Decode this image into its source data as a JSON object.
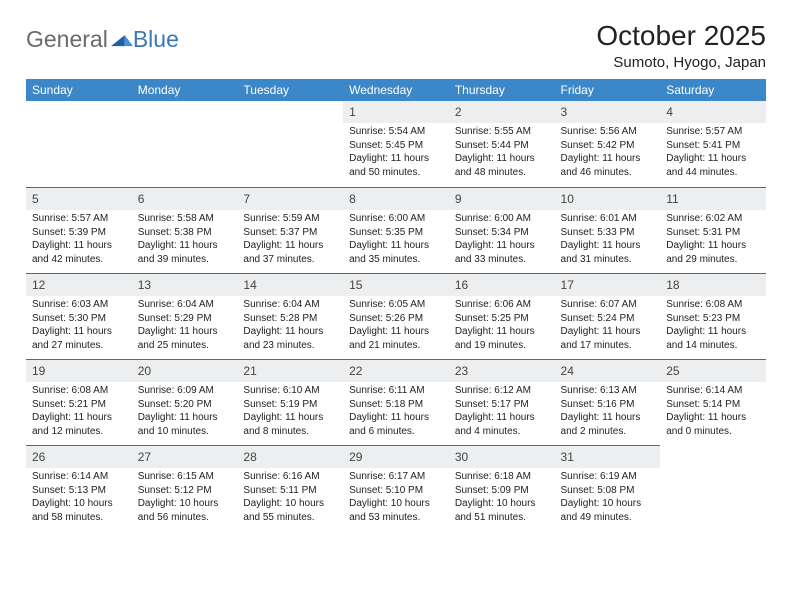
{
  "brand": {
    "part1": "General",
    "part2": "Blue"
  },
  "title": "October 2025",
  "location": "Sumoto, Hyogo, Japan",
  "colors": {
    "header_bg": "#3b87c8",
    "header_fg": "#ffffff",
    "daynum_bg": "#eceeef",
    "rule": "#3b6fa0",
    "brand_gray": "#6a6a6a",
    "brand_blue": "#3a78b5"
  },
  "weekdays": [
    "Sunday",
    "Monday",
    "Tuesday",
    "Wednesday",
    "Thursday",
    "Friday",
    "Saturday"
  ],
  "weeks": [
    [
      null,
      null,
      null,
      {
        "n": "1",
        "sr": "5:54 AM",
        "ss": "5:45 PM",
        "d": "11 hours and 50 minutes."
      },
      {
        "n": "2",
        "sr": "5:55 AM",
        "ss": "5:44 PM",
        "d": "11 hours and 48 minutes."
      },
      {
        "n": "3",
        "sr": "5:56 AM",
        "ss": "5:42 PM",
        "d": "11 hours and 46 minutes."
      },
      {
        "n": "4",
        "sr": "5:57 AM",
        "ss": "5:41 PM",
        "d": "11 hours and 44 minutes."
      }
    ],
    [
      {
        "n": "5",
        "sr": "5:57 AM",
        "ss": "5:39 PM",
        "d": "11 hours and 42 minutes."
      },
      {
        "n": "6",
        "sr": "5:58 AM",
        "ss": "5:38 PM",
        "d": "11 hours and 39 minutes."
      },
      {
        "n": "7",
        "sr": "5:59 AM",
        "ss": "5:37 PM",
        "d": "11 hours and 37 minutes."
      },
      {
        "n": "8",
        "sr": "6:00 AM",
        "ss": "5:35 PM",
        "d": "11 hours and 35 minutes."
      },
      {
        "n": "9",
        "sr": "6:00 AM",
        "ss": "5:34 PM",
        "d": "11 hours and 33 minutes."
      },
      {
        "n": "10",
        "sr": "6:01 AM",
        "ss": "5:33 PM",
        "d": "11 hours and 31 minutes."
      },
      {
        "n": "11",
        "sr": "6:02 AM",
        "ss": "5:31 PM",
        "d": "11 hours and 29 minutes."
      }
    ],
    [
      {
        "n": "12",
        "sr": "6:03 AM",
        "ss": "5:30 PM",
        "d": "11 hours and 27 minutes."
      },
      {
        "n": "13",
        "sr": "6:04 AM",
        "ss": "5:29 PM",
        "d": "11 hours and 25 minutes."
      },
      {
        "n": "14",
        "sr": "6:04 AM",
        "ss": "5:28 PM",
        "d": "11 hours and 23 minutes."
      },
      {
        "n": "15",
        "sr": "6:05 AM",
        "ss": "5:26 PM",
        "d": "11 hours and 21 minutes."
      },
      {
        "n": "16",
        "sr": "6:06 AM",
        "ss": "5:25 PM",
        "d": "11 hours and 19 minutes."
      },
      {
        "n": "17",
        "sr": "6:07 AM",
        "ss": "5:24 PM",
        "d": "11 hours and 17 minutes."
      },
      {
        "n": "18",
        "sr": "6:08 AM",
        "ss": "5:23 PM",
        "d": "11 hours and 14 minutes."
      }
    ],
    [
      {
        "n": "19",
        "sr": "6:08 AM",
        "ss": "5:21 PM",
        "d": "11 hours and 12 minutes."
      },
      {
        "n": "20",
        "sr": "6:09 AM",
        "ss": "5:20 PM",
        "d": "11 hours and 10 minutes."
      },
      {
        "n": "21",
        "sr": "6:10 AM",
        "ss": "5:19 PM",
        "d": "11 hours and 8 minutes."
      },
      {
        "n": "22",
        "sr": "6:11 AM",
        "ss": "5:18 PM",
        "d": "11 hours and 6 minutes."
      },
      {
        "n": "23",
        "sr": "6:12 AM",
        "ss": "5:17 PM",
        "d": "11 hours and 4 minutes."
      },
      {
        "n": "24",
        "sr": "6:13 AM",
        "ss": "5:16 PM",
        "d": "11 hours and 2 minutes."
      },
      {
        "n": "25",
        "sr": "6:14 AM",
        "ss": "5:14 PM",
        "d": "11 hours and 0 minutes."
      }
    ],
    [
      {
        "n": "26",
        "sr": "6:14 AM",
        "ss": "5:13 PM",
        "d": "10 hours and 58 minutes."
      },
      {
        "n": "27",
        "sr": "6:15 AM",
        "ss": "5:12 PM",
        "d": "10 hours and 56 minutes."
      },
      {
        "n": "28",
        "sr": "6:16 AM",
        "ss": "5:11 PM",
        "d": "10 hours and 55 minutes."
      },
      {
        "n": "29",
        "sr": "6:17 AM",
        "ss": "5:10 PM",
        "d": "10 hours and 53 minutes."
      },
      {
        "n": "30",
        "sr": "6:18 AM",
        "ss": "5:09 PM",
        "d": "10 hours and 51 minutes."
      },
      {
        "n": "31",
        "sr": "6:19 AM",
        "ss": "5:08 PM",
        "d": "10 hours and 49 minutes."
      },
      null
    ]
  ],
  "labels": {
    "sunrise": "Sunrise: ",
    "sunset": "Sunset: ",
    "daylight": "Daylight: "
  }
}
